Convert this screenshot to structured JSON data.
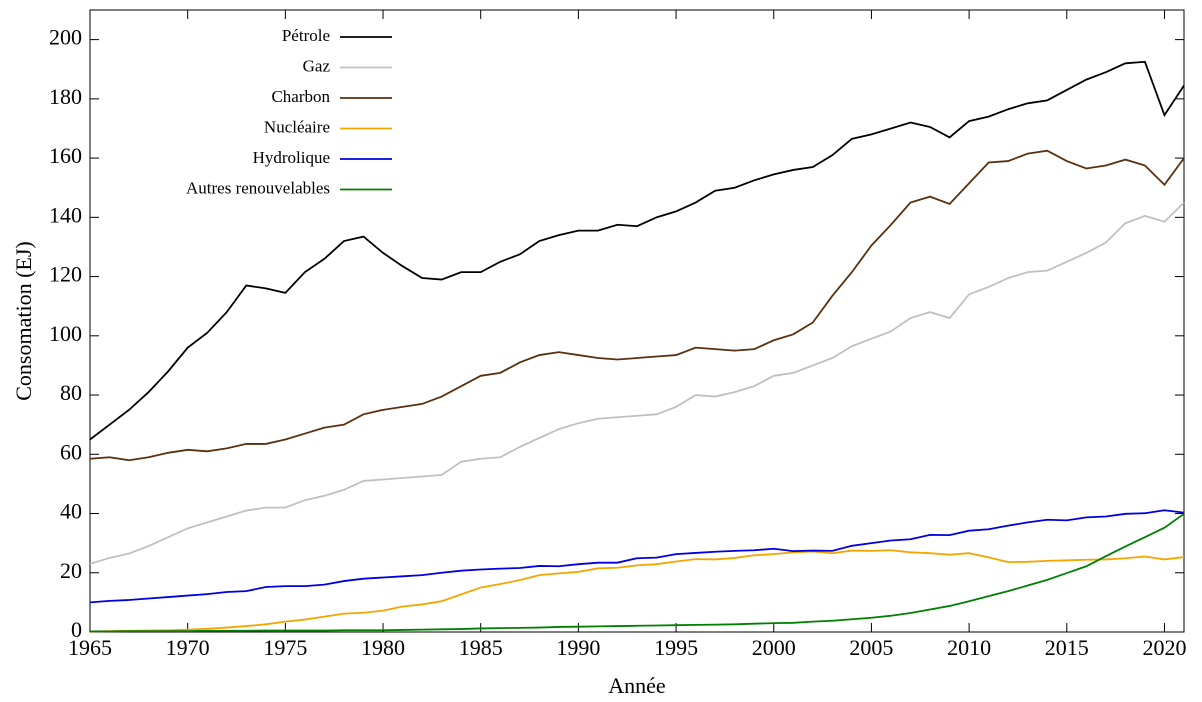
{
  "chart_data": {
    "type": "line",
    "x_label": "Année",
    "y_label": "Consomation (EJ)",
    "x": [
      1965,
      1966,
      1967,
      1968,
      1969,
      1970,
      1971,
      1972,
      1973,
      1974,
      1975,
      1976,
      1977,
      1978,
      1979,
      1980,
      1981,
      1982,
      1983,
      1984,
      1985,
      1986,
      1987,
      1988,
      1989,
      1990,
      1991,
      1992,
      1993,
      1994,
      1995,
      1996,
      1997,
      1998,
      1999,
      2000,
      2001,
      2002,
      2003,
      2004,
      2005,
      2006,
      2007,
      2008,
      2009,
      2010,
      2011,
      2012,
      2013,
      2014,
      2015,
      2016,
      2017,
      2018,
      2019,
      2020,
      2021
    ],
    "xlim": [
      1965,
      2021
    ],
    "xticks": [
      1965,
      1970,
      1975,
      1980,
      1985,
      1990,
      1995,
      2000,
      2005,
      2010,
      2015,
      2020
    ],
    "ylim": [
      0,
      210
    ],
    "yticks": [
      0,
      20,
      40,
      60,
      80,
      100,
      120,
      140,
      160,
      180,
      200
    ],
    "legend": "upper left",
    "series": [
      {
        "name": "Pétrole",
        "color": "#000000",
        "values": [
          65,
          70,
          75,
          81,
          88,
          96,
          101,
          108,
          117,
          116,
          114.5,
          121.5,
          126,
          132,
          133.5,
          128,
          123.5,
          119.5,
          119,
          121.5,
          121.5,
          125,
          127.5,
          132,
          134,
          135.5,
          135.5,
          137.5,
          137,
          140,
          142,
          145,
          149,
          150,
          152.5,
          154.5,
          156,
          157,
          161,
          166.5,
          168,
          170,
          172,
          170.5,
          167,
          172.5,
          174,
          176.5,
          178.5,
          179.5,
          183,
          186.5,
          189,
          192,
          192.5,
          174.5,
          184.5
        ]
      },
      {
        "name": "Gaz",
        "color": "#c0c0c0",
        "values": [
          23,
          25,
          26.5,
          29,
          32,
          35,
          37,
          39,
          41,
          42,
          42,
          44.5,
          46,
          48,
          51,
          51.5,
          52,
          52.5,
          53,
          57.5,
          58.5,
          59,
          62.5,
          65.5,
          68.5,
          70.5,
          72,
          72.5,
          73,
          73.5,
          76,
          80,
          79.5,
          81,
          83,
          86.5,
          87.5,
          90,
          92.5,
          96.5,
          99,
          101.5,
          106,
          108,
          106,
          114,
          116.5,
          119.5,
          121.5,
          122,
          125,
          128,
          131.5,
          138,
          140.5,
          138.5,
          145
        ]
      },
      {
        "name": "Charbon",
        "color": "#5a3010",
        "values": [
          58.5,
          59,
          58,
          59,
          60.5,
          61.5,
          61,
          62,
          63.5,
          63.5,
          65,
          67,
          69,
          70,
          73.5,
          75,
          76,
          77,
          79.5,
          83,
          86.5,
          87.5,
          91,
          93.5,
          94.5,
          93.5,
          92.5,
          92,
          92.5,
          93,
          93.5,
          96,
          95.5,
          95,
          95.5,
          98.5,
          100.5,
          104.5,
          113.5,
          121.5,
          130.5,
          137.5,
          145,
          147,
          144.5,
          151.5,
          158.5,
          159,
          161.5,
          162.5,
          159,
          156.5,
          157.5,
          159.5,
          157.5,
          151,
          160
        ]
      },
      {
        "name": "Nucléaire",
        "color": "#f5a500",
        "values": [
          0.2,
          0.3,
          0.4,
          0.5,
          0.6,
          0.8,
          1.1,
          1.5,
          2,
          2.6,
          3.5,
          4.2,
          5.2,
          6.2,
          6.5,
          7.2,
          8.6,
          9.3,
          10.4,
          12.7,
          15,
          16.2,
          17.5,
          19.2,
          19.8,
          20.3,
          21.5,
          21.7,
          22.5,
          22.9,
          23.8,
          24.6,
          24.5,
          25,
          25.9,
          26.3,
          26.9,
          27.2,
          26.6,
          27.5,
          27.4,
          27.6,
          26.9,
          26.6,
          26.1,
          26.6,
          25.2,
          23.6,
          23.7,
          24,
          24.2,
          24.4,
          24.5,
          24.9,
          25.5,
          24.5,
          25.3
        ]
      },
      {
        "name": "Hydrolique",
        "color": "#0000e0",
        "values": [
          10,
          10.5,
          10.8,
          11.3,
          11.8,
          12.3,
          12.8,
          13.5,
          13.8,
          15.2,
          15.5,
          15.5,
          16,
          17.2,
          18,
          18.4,
          18.8,
          19.2,
          20,
          20.7,
          21.1,
          21.4,
          21.6,
          22.3,
          22.2,
          22.9,
          23.4,
          23.4,
          24.9,
          25.1,
          26.3,
          26.7,
          27.1,
          27.4,
          27.6,
          28.1,
          27.3,
          27.5,
          27.4,
          29.1,
          30,
          30.9,
          31.3,
          32.8,
          32.7,
          34.2,
          34.7,
          35.9,
          37,
          37.9,
          37.7,
          38.7,
          39,
          39.9,
          40.1,
          41.1,
          40.3
        ]
      },
      {
        "name": "Autres renouvelables",
        "color": "#008000",
        "values": [
          0.2,
          0.2,
          0.3,
          0.3,
          0.3,
          0.3,
          0.4,
          0.4,
          0.4,
          0.5,
          0.5,
          0.5,
          0.5,
          0.6,
          0.6,
          0.6,
          0.7,
          0.8,
          0.9,
          1,
          1.2,
          1.3,
          1.4,
          1.5,
          1.7,
          1.8,
          1.9,
          2,
          2.1,
          2.2,
          2.3,
          2.4,
          2.5,
          2.6,
          2.8,
          3,
          3.1,
          3.5,
          3.8,
          4.3,
          4.8,
          5.5,
          6.4,
          7.6,
          8.8,
          10.4,
          12.1,
          13.8,
          15.7,
          17.6,
          19.9,
          22.2,
          25.6,
          28.9,
          32,
          35.2,
          39.9
        ]
      }
    ]
  }
}
